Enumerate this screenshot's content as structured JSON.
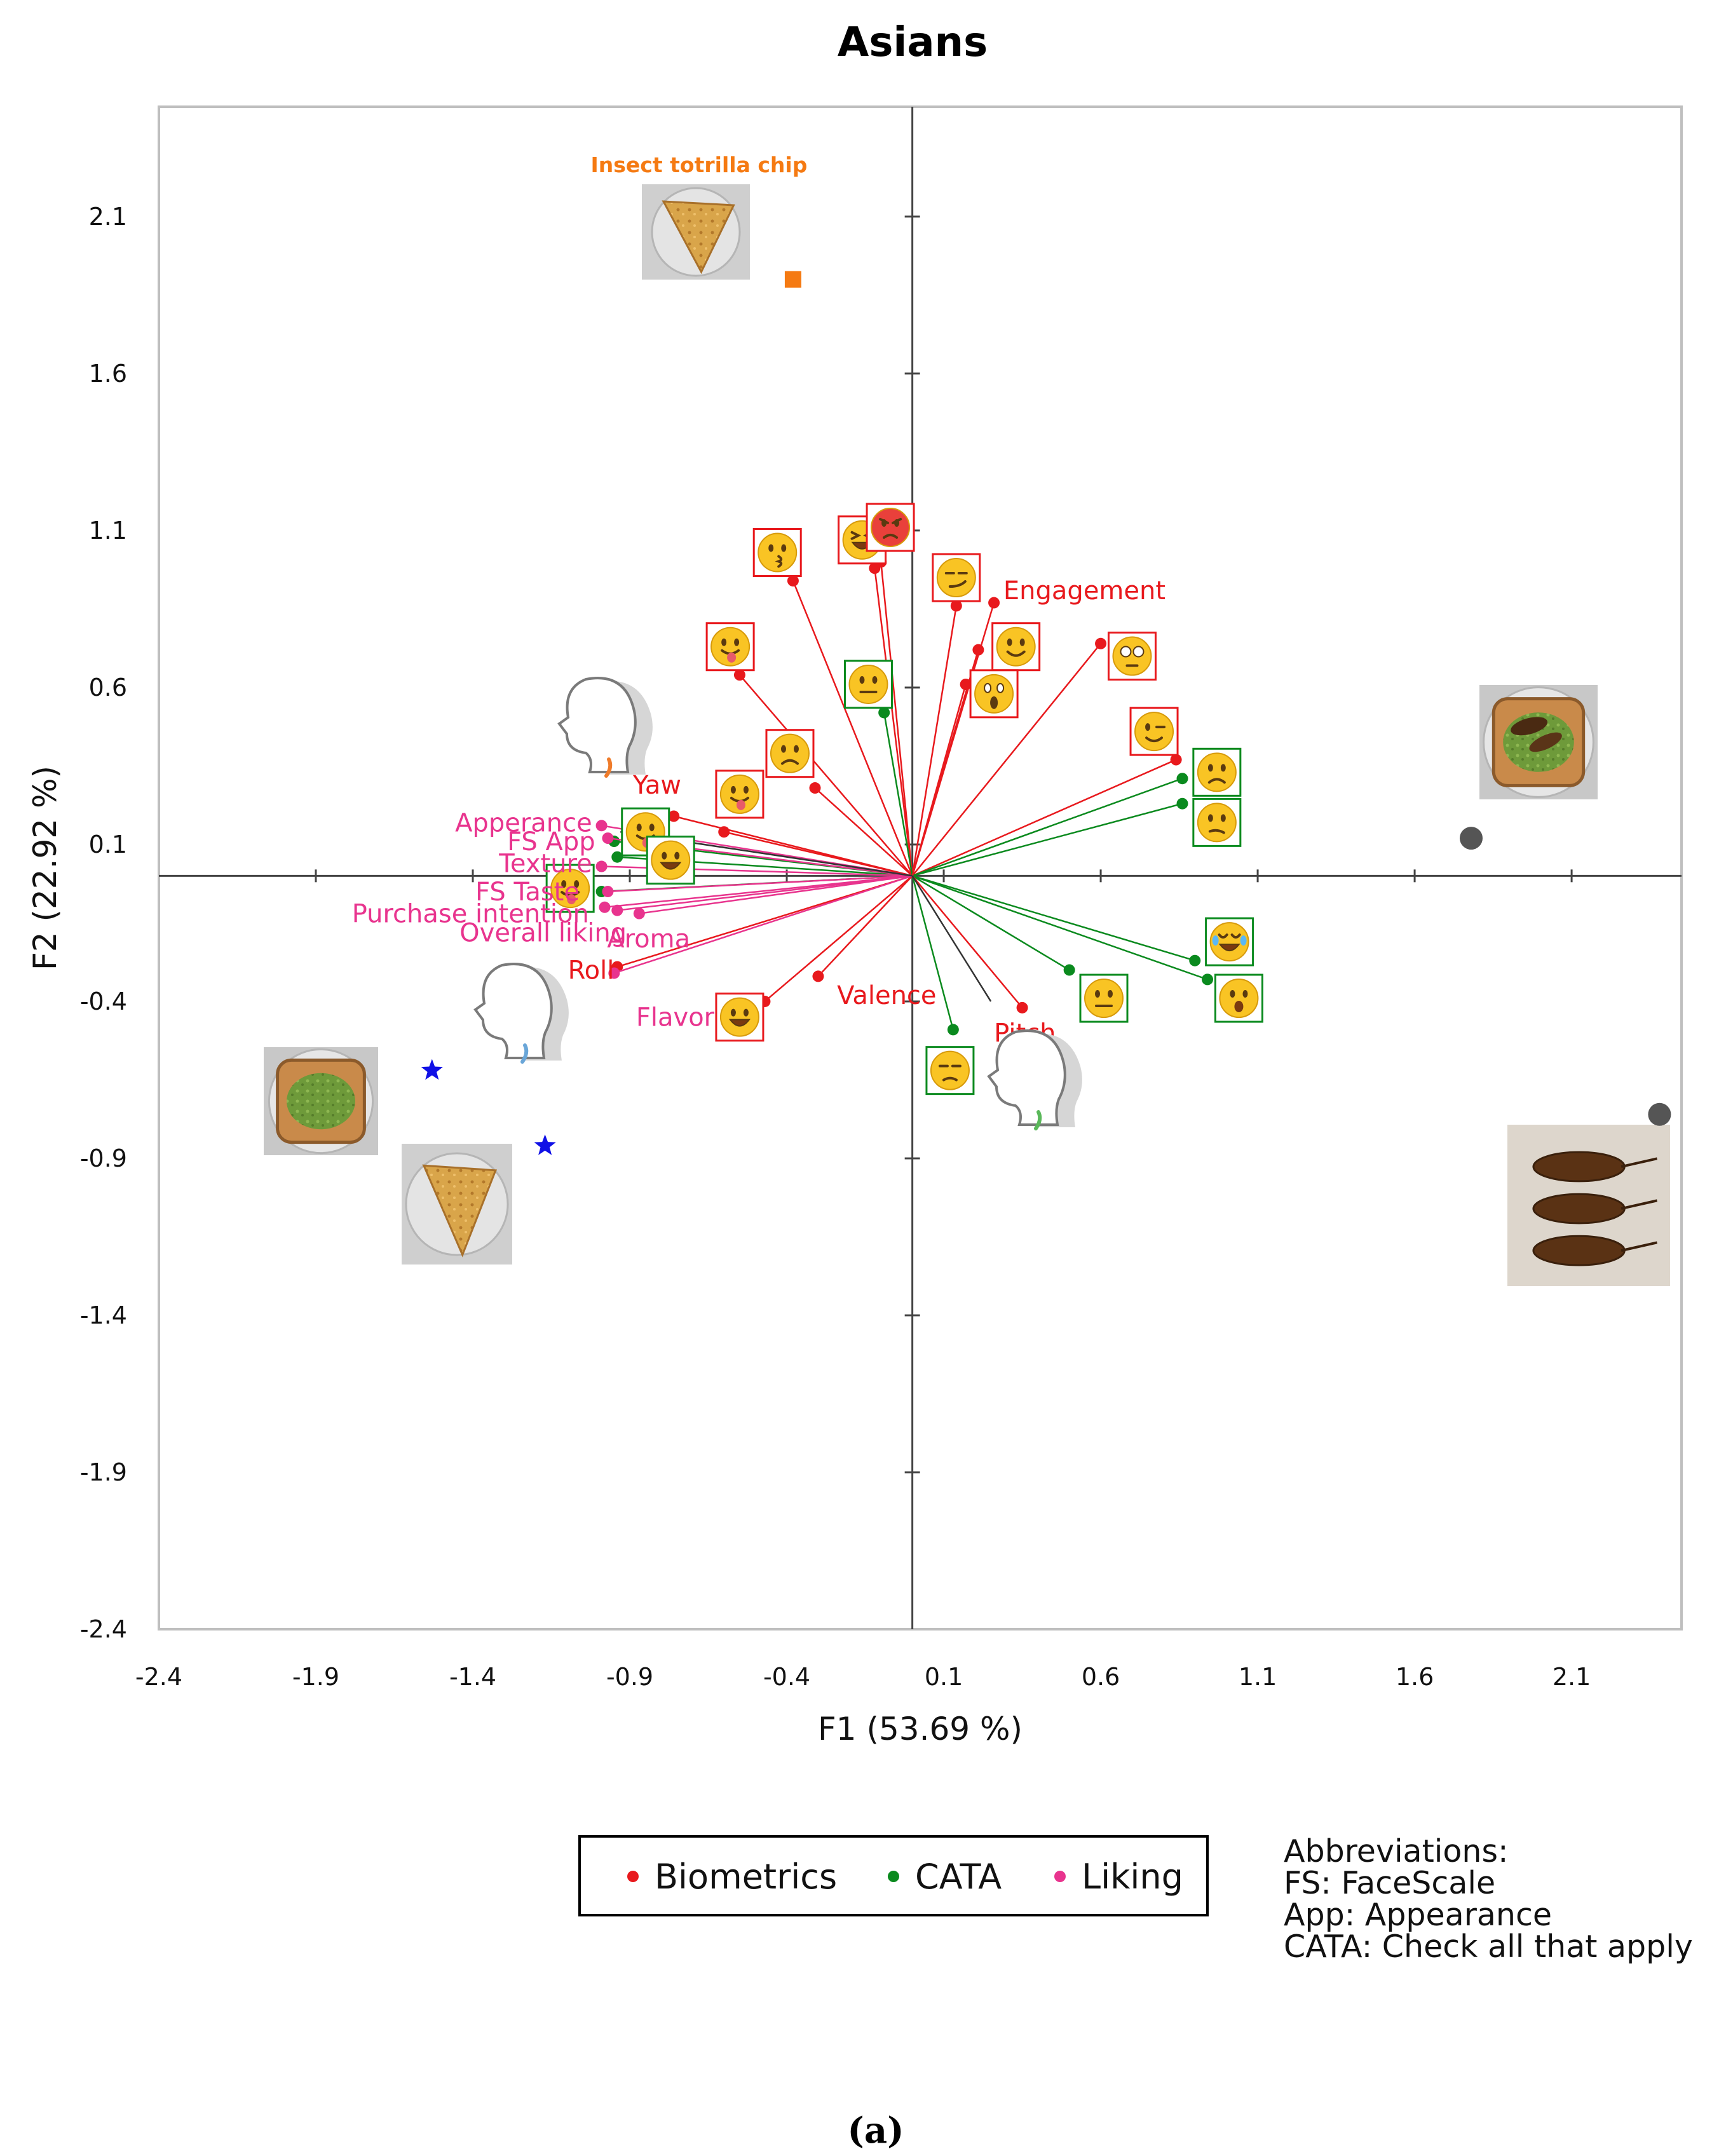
{
  "chart_data": {
    "type": "scatter",
    "subtype": "biplot",
    "title": "Asians",
    "xlabel": "F1 (53.69 %)",
    "ylabel": "F2 (22.92 %)",
    "xlim": [
      -2.4,
      2.45
    ],
    "ylim": [
      -2.4,
      2.45
    ],
    "xticks": [
      "-2.4",
      "-1.9",
      "-1.4",
      "-0.9",
      "-0.4",
      "0.1",
      "0.6",
      "1.1",
      "1.6",
      "2.1"
    ],
    "yticks": [
      "2.1",
      "1.6",
      "1.1",
      "0.6",
      "0.1",
      "-0.4",
      "-0.9",
      "-1.4",
      "-1.9",
      "-2.4"
    ],
    "colors": {
      "Biometrics": "#e8191d",
      "CATA": "#0a8a1e",
      "Liking": "#e8348e",
      "sample_label": "#f57a12",
      "other_vector": "#333333"
    },
    "variables": [
      {
        "label": "Engagement",
        "group": "Biometrics",
        "x": 0.26,
        "y": 0.87
      },
      {
        "label": "Yaw",
        "group": "Biometrics",
        "x": -0.76,
        "y": 0.19
      },
      {
        "label": "Roll",
        "group": "Biometrics",
        "x": -0.94,
        "y": -0.29
      },
      {
        "label": "Valence",
        "group": "Biometrics",
        "x": -0.3,
        "y": -0.32
      },
      {
        "label": "Pitch",
        "group": "Biometrics",
        "x": 0.35,
        "y": -0.42
      },
      {
        "label": "Appearance",
        "display": "Apperance",
        "group": "Liking",
        "x": -0.99,
        "y": 0.16
      },
      {
        "label": "FS App",
        "group": "Liking",
        "x": -0.97,
        "y": 0.12
      },
      {
        "label": "Texture",
        "group": "Liking",
        "x": -0.99,
        "y": 0.03
      },
      {
        "label": "FS Taste",
        "group": "Liking",
        "x": -0.97,
        "y": -0.05
      },
      {
        "label": "Purchase intention",
        "group": "Liking",
        "x": -0.98,
        "y": -0.1
      },
      {
        "label": "Overall liking",
        "group": "Liking",
        "x": -0.94,
        "y": -0.11
      },
      {
        "label": "Aroma",
        "group": "Liking",
        "x": -0.87,
        "y": -0.12
      },
      {
        "label": "Flavor",
        "group": "Liking",
        "x": -0.95,
        "y": -0.31
      }
    ],
    "emoji_vectors": [
      {
        "name": "kissing",
        "group": "Biometrics",
        "x": -0.38,
        "y": 0.94
      },
      {
        "name": "grinning-squint",
        "group": "Biometrics",
        "x": -0.12,
        "y": 0.98
      },
      {
        "name": "pouting",
        "group": "Biometrics",
        "x": -0.1,
        "y": 1.0
      },
      {
        "name": "smirking",
        "group": "Biometrics",
        "x": 0.14,
        "y": 0.86
      },
      {
        "name": "winking-tongue",
        "group": "Biometrics",
        "x": -0.55,
        "y": 0.64
      },
      {
        "name": "slightly-smiling",
        "group": "Biometrics",
        "x": 0.21,
        "y": 0.72
      },
      {
        "name": "screaming",
        "group": "Biometrics",
        "x": 0.17,
        "y": 0.61
      },
      {
        "name": "flushed",
        "group": "Biometrics",
        "x": 0.6,
        "y": 0.74
      },
      {
        "name": "winking",
        "group": "Biometrics",
        "x": 0.84,
        "y": 0.37
      },
      {
        "name": "disappointed-red",
        "group": "Biometrics",
        "x": -0.31,
        "y": 0.28
      },
      {
        "name": "tongue-out",
        "group": "Biometrics",
        "x": -0.6,
        "y": 0.14
      },
      {
        "name": "grinning",
        "group": "Biometrics",
        "x": -0.47,
        "y": -0.4
      },
      {
        "name": "neutral",
        "group": "CATA",
        "x": -0.09,
        "y": 0.52
      },
      {
        "name": "yum-green",
        "group": "CATA",
        "x": -0.95,
        "y": 0.11
      },
      {
        "name": "smiling-green",
        "group": "CATA",
        "x": -0.94,
        "y": 0.06
      },
      {
        "name": "yum-green-2",
        "group": "CATA",
        "x": -0.99,
        "y": -0.05
      },
      {
        "name": "disappointed-green",
        "group": "CATA",
        "x": 0.86,
        "y": 0.31
      },
      {
        "name": "confused",
        "group": "CATA",
        "x": 0.86,
        "y": 0.23
      },
      {
        "name": "joy",
        "group": "CATA",
        "x": 0.9,
        "y": -0.27
      },
      {
        "name": "astonished",
        "group": "CATA",
        "x": 0.94,
        "y": -0.33
      },
      {
        "name": "expressionless",
        "group": "CATA",
        "x": 0.5,
        "y": -0.3
      },
      {
        "name": "unamused",
        "group": "CATA",
        "x": 0.13,
        "y": -0.49
      }
    ],
    "samples": [
      {
        "name": "Insect totrilla chip",
        "display": "Insect totrilla chip",
        "x": -0.38,
        "y": 1.9,
        "marker": "square",
        "color": "#f57a12"
      },
      {
        "name": "insect-avocado-toast",
        "x": 1.78,
        "y": 0.12,
        "marker": "circle",
        "color": "#555555"
      },
      {
        "name": "whole-insects",
        "x": 2.38,
        "y": -0.76,
        "marker": "circle",
        "color": "#555555"
      },
      {
        "name": "control-avocado-toast",
        "x": -1.53,
        "y": -0.62,
        "marker": "star",
        "color": "#1010e6"
      },
      {
        "name": "control-tortilla-chip",
        "x": -1.17,
        "y": -0.86,
        "marker": "star",
        "color": "#1010e6"
      }
    ],
    "legend": {
      "items": [
        "Biometrics",
        "CATA",
        "Liking"
      ],
      "placement": "bottom"
    },
    "abbreviations": [
      "Abbreviations:",
      "FS: FaceScale",
      "App: Appearance",
      "CATA: Check all that apply"
    ],
    "caption": "(a)"
  }
}
